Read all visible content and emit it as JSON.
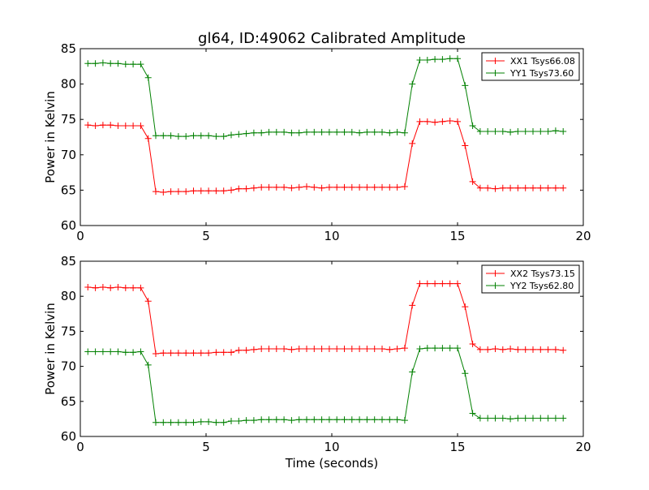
{
  "title": "gl64, ID:49062 Calibrated Amplitude",
  "chart_data": [
    {
      "type": "line",
      "xlabel": "",
      "ylabel": "Power in Kelvin",
      "xlim": [
        0,
        20
      ],
      "ylim": [
        60,
        85
      ],
      "xticks": [
        0,
        5,
        10,
        15,
        20
      ],
      "yticks": [
        60,
        65,
        70,
        75,
        80,
        85
      ],
      "grid": false,
      "legend": "top-right",
      "marker": "+",
      "x": [
        0.3,
        0.6,
        0.9,
        1.2,
        1.5,
        1.8,
        2.1,
        2.4,
        2.7,
        3.0,
        3.3,
        3.6,
        3.9,
        4.2,
        4.5,
        4.8,
        5.1,
        5.4,
        5.7,
        6.0,
        6.3,
        6.6,
        6.9,
        7.2,
        7.5,
        7.8,
        8.1,
        8.4,
        8.7,
        9.0,
        9.3,
        9.6,
        9.9,
        10.2,
        10.5,
        10.8,
        11.1,
        11.4,
        11.7,
        12.0,
        12.3,
        12.6,
        12.9,
        13.2,
        13.5,
        13.8,
        14.1,
        14.4,
        14.7,
        15.0,
        15.3,
        15.6,
        15.9,
        16.2,
        16.5,
        16.8,
        17.1,
        17.4,
        17.7,
        18.0,
        18.3,
        18.6,
        18.9,
        19.2
      ],
      "series": [
        {
          "name": "XX1 Tsys66.08",
          "color": "#ff0000",
          "values": [
            74.2,
            74.1,
            74.2,
            74.2,
            74.1,
            74.1,
            74.1,
            74.1,
            72.3,
            64.8,
            64.7,
            64.8,
            64.8,
            64.8,
            64.9,
            64.9,
            64.9,
            64.9,
            64.9,
            65.0,
            65.2,
            65.2,
            65.3,
            65.4,
            65.4,
            65.4,
            65.4,
            65.3,
            65.4,
            65.5,
            65.4,
            65.3,
            65.4,
            65.4,
            65.4,
            65.4,
            65.4,
            65.4,
            65.4,
            65.4,
            65.4,
            65.4,
            65.5,
            71.6,
            74.7,
            74.7,
            74.6,
            74.7,
            74.8,
            74.7,
            71.3,
            66.2,
            65.3,
            65.3,
            65.2,
            65.3,
            65.3,
            65.3,
            65.3,
            65.3,
            65.3,
            65.3,
            65.3,
            65.3
          ]
        },
        {
          "name": "YY1 Tsys73.60",
          "color": "#008000",
          "values": [
            82.9,
            82.9,
            83.0,
            82.9,
            82.9,
            82.8,
            82.8,
            82.8,
            80.9,
            72.7,
            72.7,
            72.7,
            72.6,
            72.6,
            72.7,
            72.7,
            72.7,
            72.6,
            72.6,
            72.8,
            72.9,
            73.0,
            73.1,
            73.1,
            73.2,
            73.2,
            73.2,
            73.1,
            73.1,
            73.2,
            73.2,
            73.2,
            73.2,
            73.2,
            73.2,
            73.2,
            73.1,
            73.2,
            73.2,
            73.2,
            73.1,
            73.2,
            73.1,
            80.0,
            83.4,
            83.4,
            83.5,
            83.5,
            83.6,
            83.6,
            79.8,
            74.1,
            73.3,
            73.3,
            73.3,
            73.3,
            73.2,
            73.3,
            73.3,
            73.3,
            73.3,
            73.3,
            73.4,
            73.3
          ]
        }
      ]
    },
    {
      "type": "line",
      "xlabel": "Time (seconds)",
      "ylabel": "Power in Kelvin",
      "xlim": [
        0,
        20
      ],
      "ylim": [
        60,
        85
      ],
      "xticks": [
        0,
        5,
        10,
        15,
        20
      ],
      "yticks": [
        60,
        65,
        70,
        75,
        80,
        85
      ],
      "grid": false,
      "legend": "top-right",
      "marker": "+",
      "x": [
        0.3,
        0.6,
        0.9,
        1.2,
        1.5,
        1.8,
        2.1,
        2.4,
        2.7,
        3.0,
        3.3,
        3.6,
        3.9,
        4.2,
        4.5,
        4.8,
        5.1,
        5.4,
        5.7,
        6.0,
        6.3,
        6.6,
        6.9,
        7.2,
        7.5,
        7.8,
        8.1,
        8.4,
        8.7,
        9.0,
        9.3,
        9.6,
        9.9,
        10.2,
        10.5,
        10.8,
        11.1,
        11.4,
        11.7,
        12.0,
        12.3,
        12.6,
        12.9,
        13.2,
        13.5,
        13.8,
        14.1,
        14.4,
        14.7,
        15.0,
        15.3,
        15.6,
        15.9,
        16.2,
        16.5,
        16.8,
        17.1,
        17.4,
        17.7,
        18.0,
        18.3,
        18.6,
        18.9,
        19.2
      ],
      "series": [
        {
          "name": "XX2 Tsys73.15",
          "color": "#ff0000",
          "values": [
            81.3,
            81.2,
            81.3,
            81.2,
            81.3,
            81.2,
            81.2,
            81.2,
            79.3,
            71.8,
            71.9,
            71.9,
            71.9,
            71.9,
            71.9,
            71.9,
            71.9,
            72.0,
            72.0,
            72.0,
            72.3,
            72.3,
            72.4,
            72.5,
            72.5,
            72.5,
            72.5,
            72.4,
            72.5,
            72.5,
            72.5,
            72.5,
            72.5,
            72.5,
            72.5,
            72.5,
            72.5,
            72.5,
            72.5,
            72.5,
            72.4,
            72.5,
            72.6,
            78.7,
            81.8,
            81.8,
            81.8,
            81.8,
            81.8,
            81.8,
            78.5,
            73.2,
            72.4,
            72.4,
            72.5,
            72.4,
            72.5,
            72.4,
            72.4,
            72.4,
            72.4,
            72.4,
            72.4,
            72.3
          ]
        },
        {
          "name": "YY2 Tsys62.80",
          "color": "#008000",
          "values": [
            72.1,
            72.1,
            72.1,
            72.1,
            72.1,
            72.0,
            72.0,
            72.1,
            70.2,
            62.0,
            62.0,
            62.0,
            62.0,
            62.0,
            62.0,
            62.1,
            62.1,
            62.0,
            62.0,
            62.2,
            62.2,
            62.3,
            62.3,
            62.4,
            62.4,
            62.4,
            62.4,
            62.3,
            62.4,
            62.4,
            62.4,
            62.4,
            62.4,
            62.4,
            62.4,
            62.4,
            62.4,
            62.4,
            62.4,
            62.4,
            62.4,
            62.4,
            62.3,
            69.2,
            72.5,
            72.6,
            72.6,
            72.6,
            72.6,
            72.6,
            69.0,
            63.3,
            62.6,
            62.6,
            62.6,
            62.6,
            62.5,
            62.6,
            62.6,
            62.6,
            62.6,
            62.6,
            62.6,
            62.6
          ]
        }
      ]
    }
  ]
}
